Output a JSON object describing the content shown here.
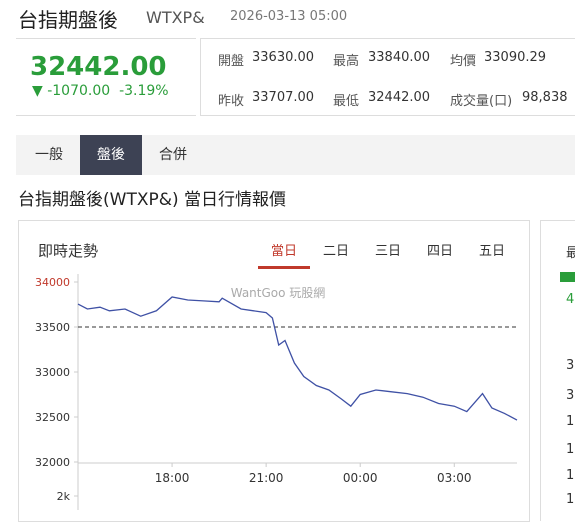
{
  "header": {
    "title": "台指期盤後",
    "code": "WTXP&",
    "datetime": "2026-03-13 05:00"
  },
  "quote": {
    "price": "32442.00",
    "change": "-1070.00",
    "change_pct": "-3.19%"
  },
  "stats": [
    [
      {
        "label": "開盤",
        "value": "33630.00"
      },
      {
        "label": "最高",
        "value": "33840.00"
      },
      {
        "label": "均價",
        "value": "33090.29"
      }
    ],
    [
      {
        "label": "昨收",
        "value": "33707.00"
      },
      {
        "label": "最低",
        "value": "32442.00"
      },
      {
        "label": "成交量(口)",
        "value": "98,838"
      }
    ]
  ],
  "tabs": [
    "一般",
    "盤後",
    "合併"
  ],
  "active_tab": 1,
  "section_title": "台指期盤後(WTXP&) 當日行情報價",
  "panel": {
    "title": "即時走勢",
    "ranges": [
      "當日",
      "二日",
      "三日",
      "四日",
      "五日"
    ],
    "active_range": 0,
    "watermark": "WantGoo 玩股網"
  },
  "chart_data": {
    "type": "line",
    "x": [
      0,
      0.3,
      0.7,
      1.0,
      1.5,
      2.0,
      2.5,
      3.0,
      3.5,
      4.0,
      4.5,
      4.6,
      5.2,
      5.6,
      6.0,
      6.2,
      6.4,
      6.6,
      6.9,
      7.2,
      7.6,
      8.0,
      8.4,
      8.7,
      9.0,
      9.5,
      10.0,
      10.5,
      11.0,
      11.5,
      12.0,
      12.4,
      12.7,
      12.9,
      13.2,
      13.6,
      14.0
    ],
    "series": [
      {
        "color": "#3f51a5",
        "values": [
          33755,
          33700,
          33720,
          33680,
          33700,
          33620,
          33680,
          33833,
          33800,
          33790,
          33780,
          33820,
          33700,
          33680,
          33660,
          33600,
          33300,
          33350,
          33100,
          32950,
          32850,
          32800,
          32700,
          32620,
          32750,
          32800,
          32780,
          32760,
          32720,
          32650,
          32620,
          32560,
          32680,
          32760,
          32600,
          32540,
          32466
        ]
      }
    ],
    "xlim": [
      0,
      14
    ],
    "xticks": [
      {
        "value": 3,
        "label": "18:00"
      },
      {
        "value": 6,
        "label": "21:00"
      },
      {
        "value": 9,
        "label": "00:00"
      },
      {
        "value": 12,
        "label": "03:00"
      }
    ],
    "ylim": [
      32000,
      34000
    ],
    "yticks": [
      34000,
      33500,
      33000,
      32500,
      32000
    ],
    "ref_line": 33500,
    "volume_yticks": [
      {
        "value": 2000,
        "label": "2k"
      }
    ]
  },
  "right_panel": [
    "最",
    "4",
    "3",
    "3",
    "1",
    "1",
    "1",
    "1"
  ]
}
